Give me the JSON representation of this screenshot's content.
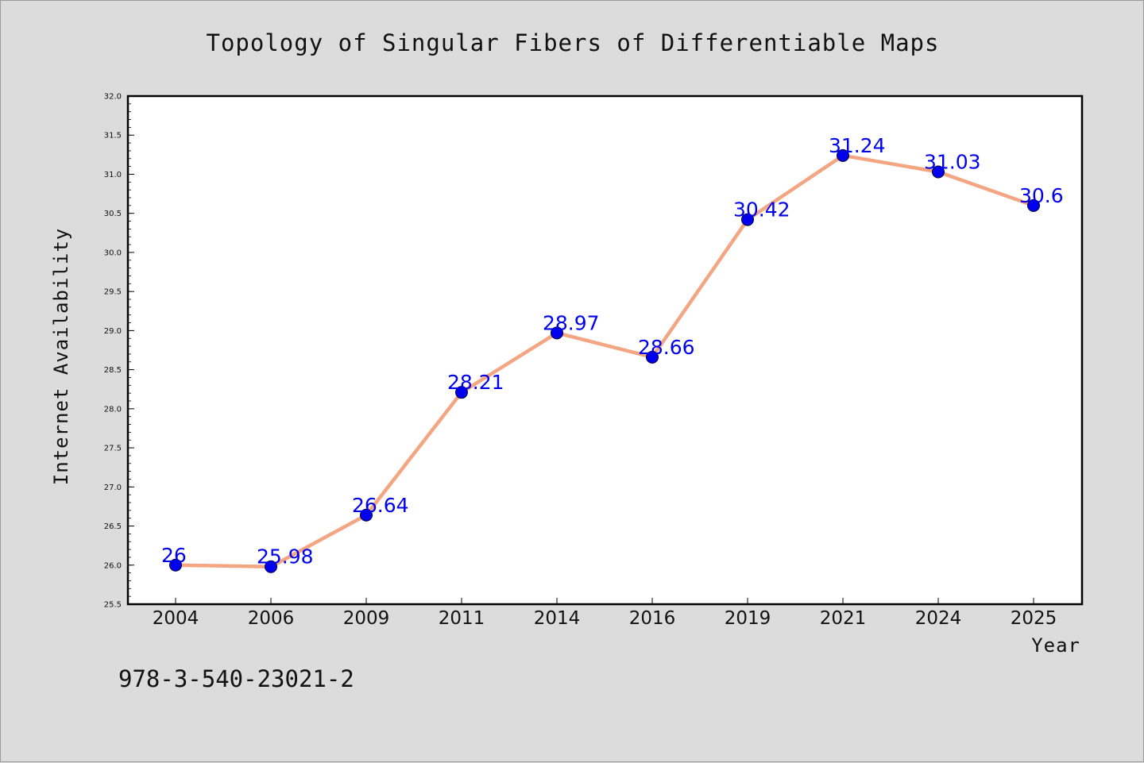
{
  "chart_data": {
    "type": "line",
    "title": "Topology of Singular Fibers of Differentiable Maps",
    "xlabel": "Year",
    "ylabel": "Internet Availability",
    "categories": [
      "2004",
      "2006",
      "2009",
      "2011",
      "2014",
      "2016",
      "2019",
      "2021",
      "2024",
      "2025"
    ],
    "series": [
      {
        "values": [
          26,
          25.98,
          26.64,
          28.21,
          28.97,
          28.66,
          30.42,
          31.24,
          31.03,
          30.6
        ],
        "labels": [
          "26",
          "25.98",
          "26.64",
          "28.21",
          "28.97",
          "28.66",
          "30.42",
          "31.24",
          "31.03",
          "30.6"
        ],
        "line_color": "#f4a582",
        "marker_color": "#0000ee"
      }
    ],
    "ylim": [
      25.5,
      32.0
    ],
    "y_ticks": [
      "25.5",
      "26.0",
      "26.5",
      "27.0",
      "27.5",
      "28.0",
      "28.5",
      "29.0",
      "29.5",
      "30.0",
      "30.5",
      "31.0",
      "31.5",
      "32.0"
    ],
    "grid": false,
    "data_labels": true
  },
  "footer": {
    "isbn": "978-3-540-23021-2"
  }
}
